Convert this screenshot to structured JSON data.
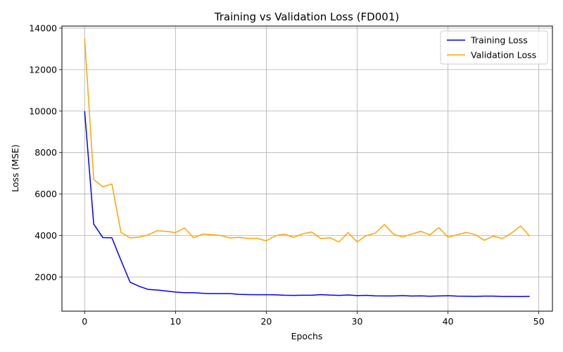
{
  "chart_data": {
    "type": "line",
    "title": "Training vs Validation Loss (FD001)",
    "xlabel": "Epochs",
    "ylabel": "Loss (MSE)",
    "xlim": [
      -2.5,
      51.5
    ],
    "ylim": [
      350,
      14100
    ],
    "xticks": [
      0,
      10,
      20,
      30,
      40,
      50
    ],
    "yticks": [
      2000,
      4000,
      6000,
      8000,
      10000,
      12000,
      14000
    ],
    "grid": true,
    "legend_position": "top-right",
    "x": [
      0,
      1,
      2,
      3,
      4,
      5,
      6,
      7,
      8,
      9,
      10,
      11,
      12,
      13,
      14,
      15,
      16,
      17,
      18,
      19,
      20,
      21,
      22,
      23,
      24,
      25,
      26,
      27,
      28,
      29,
      30,
      31,
      32,
      33,
      34,
      35,
      36,
      37,
      38,
      39,
      40,
      41,
      42,
      43,
      44,
      45,
      46,
      47,
      48,
      49
    ],
    "series": [
      {
        "name": "Training Loss",
        "color": "#0000ff",
        "values": [
          10000,
          4550,
          3900,
          3890,
          2800,
          1750,
          1550,
          1400,
          1370,
          1320,
          1270,
          1240,
          1240,
          1210,
          1200,
          1200,
          1200,
          1160,
          1150,
          1145,
          1145,
          1140,
          1120,
          1110,
          1120,
          1120,
          1150,
          1125,
          1110,
          1130,
          1100,
          1115,
          1090,
          1085,
          1085,
          1100,
          1080,
          1090,
          1070,
          1085,
          1095,
          1075,
          1070,
          1065,
          1075,
          1075,
          1060,
          1060,
          1055,
          1065
        ]
      },
      {
        "name": "Validation Loss",
        "color": "#ffa500",
        "values": [
          13500,
          6700,
          6350,
          6480,
          4150,
          3880,
          3920,
          4030,
          4230,
          4200,
          4140,
          4360,
          3890,
          4070,
          4040,
          4000,
          3880,
          3910,
          3860,
          3860,
          3740,
          3990,
          4060,
          3910,
          4080,
          4170,
          3850,
          3890,
          3690,
          4140,
          3690,
          3990,
          4110,
          4530,
          4060,
          3930,
          4070,
          4200,
          4030,
          4380,
          3920,
          4030,
          4150,
          4040,
          3770,
          3970,
          3850,
          4120,
          4460,
          3960
        ]
      }
    ]
  }
}
